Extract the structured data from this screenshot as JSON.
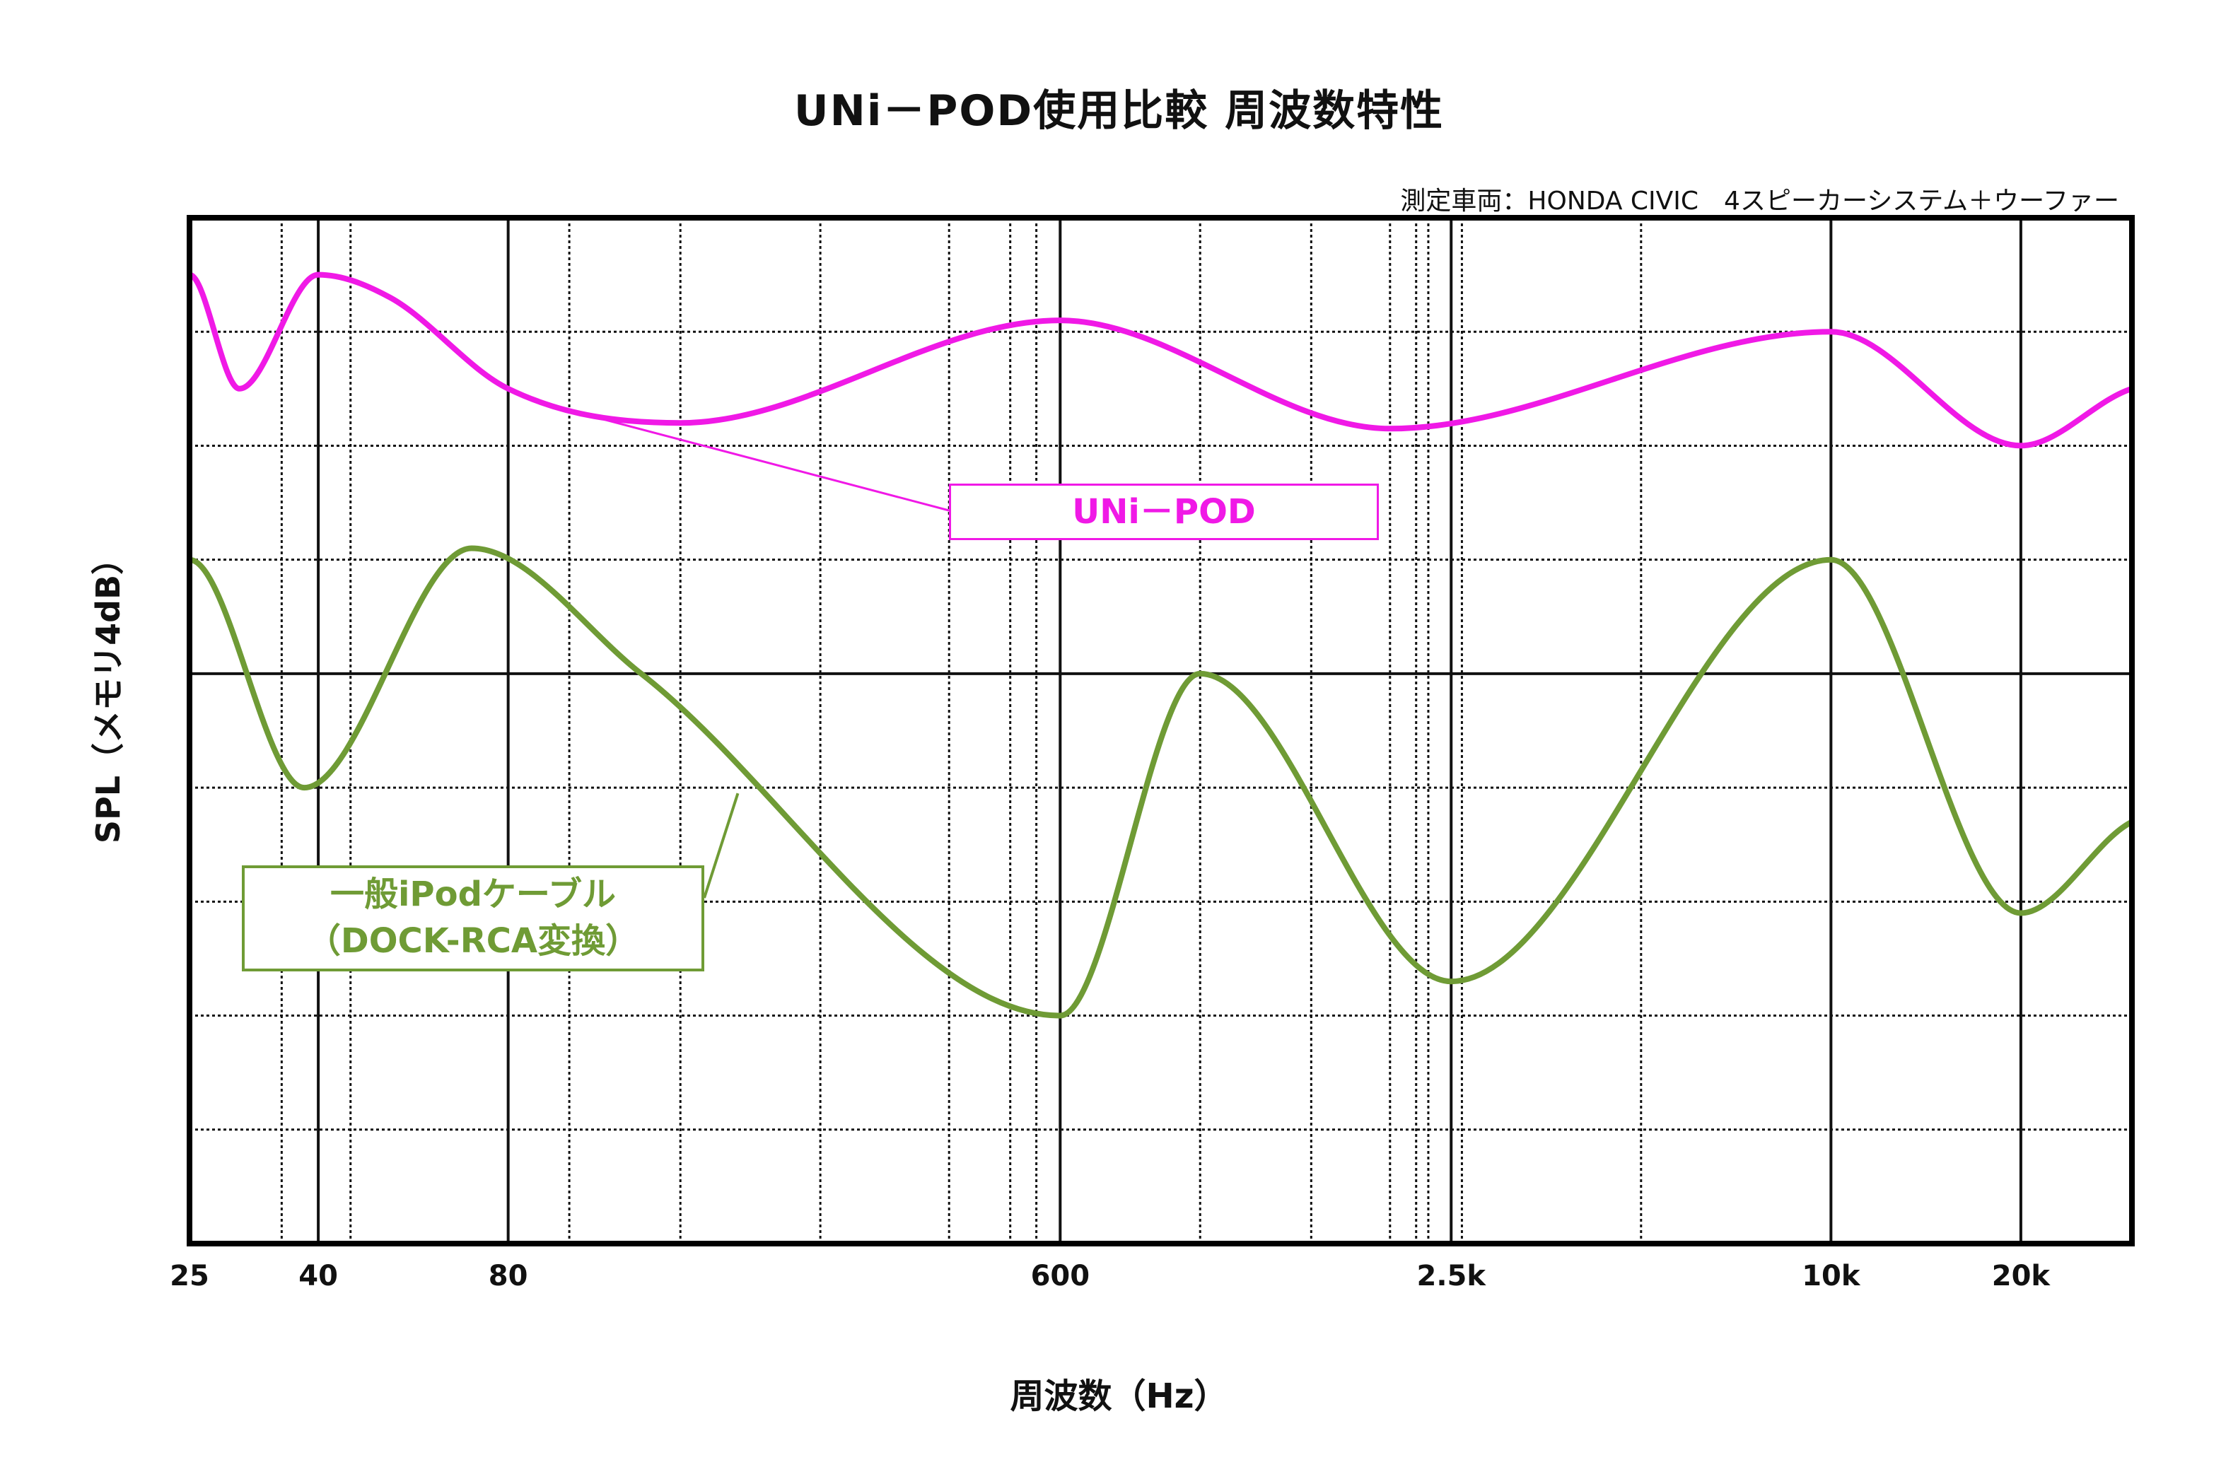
{
  "chart_data": {
    "type": "line",
    "title": "UNi－POD使用比較 周波数特性",
    "subtitle": "測定車両：HONDA CIVIC　4スピーカーシステム＋ウーファー",
    "xlabel": "周波数（Hz）",
    "ylabel": "SPL（メモリ4dB）",
    "x_scale": "log",
    "xlim": [
      25,
      30000
    ],
    "ylim": [
      0,
      9
    ],
    "y_grid_step": 1,
    "grid": true,
    "x_tick_labels": [
      {
        "x": 25,
        "label": "25"
      },
      {
        "x": 40,
        "label": "40"
      },
      {
        "x": 80,
        "label": "80"
      },
      {
        "x": 600,
        "label": "600"
      },
      {
        "x": 2500,
        "label": "2.5k"
      },
      {
        "x": 10000,
        "label": "10k"
      },
      {
        "x": 20000,
        "label": "20k"
      }
    ],
    "x_major_grid": [
      40,
      80,
      600,
      2500,
      10000,
      20000
    ],
    "x_minor_grid": [
      35,
      45,
      100,
      150,
      250,
      400,
      500,
      550,
      1000,
      1500,
      2000,
      2200,
      2300,
      2600,
      5000
    ],
    "y_major_grid": [
      5
    ],
    "series": [
      {
        "name": "UNi－POD",
        "color": "#f019e6",
        "x": [
          25,
          30,
          40,
          52,
          80,
          150,
          600,
          2000,
          10000,
          20000,
          30000
        ],
        "y": [
          8.5,
          7.5,
          8.5,
          8.3,
          7.5,
          7.2,
          8.1,
          7.15,
          8.0,
          7.0,
          7.5
        ]
      },
      {
        "name": "一般iPodケーブル\n（DOCK-RCA変換）",
        "color": "#6f9b35",
        "x": [
          25,
          38,
          70,
          130,
          600,
          1000,
          2500,
          10000,
          20000,
          30000
        ],
        "y": [
          6.0,
          4.0,
          6.1,
          5.0,
          2.0,
          5.0,
          2.3,
          6.0,
          2.9,
          3.7
        ]
      }
    ],
    "annotations": [
      "UNi－POD",
      "一般iPodケーブル",
      "（DOCK-RCA変換）"
    ]
  }
}
